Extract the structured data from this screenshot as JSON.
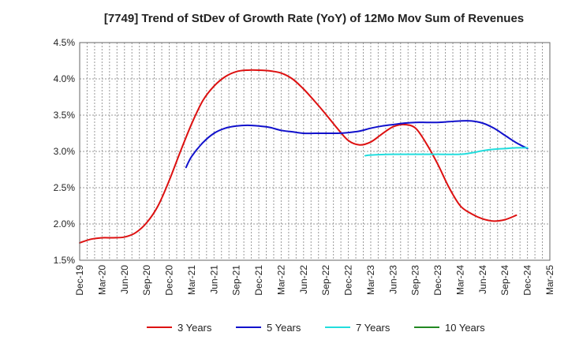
{
  "chart_data": {
    "type": "line",
    "title": "[7749]  Trend of StDev of Growth Rate (YoY) of 12Mo Mov Sum of Revenues",
    "xlabel": "",
    "ylabel": "",
    "ylim": [
      1.5,
      4.5
    ],
    "yticks": [
      "1.5%",
      "2.0%",
      "2.5%",
      "3.0%",
      "3.5%",
      "4.0%",
      "4.5%"
    ],
    "ytick_values": [
      1.5,
      2.0,
      2.5,
      3.0,
      3.5,
      4.0,
      4.5
    ],
    "xticks": [
      "Dec-19",
      "Mar-20",
      "Jun-20",
      "Sep-20",
      "Dec-20",
      "Mar-21",
      "Jun-21",
      "Sep-21",
      "Dec-21",
      "Mar-22",
      "Jun-22",
      "Sep-22",
      "Dec-22",
      "Mar-23",
      "Jun-23",
      "Sep-23",
      "Dec-23",
      "Mar-24",
      "Jun-24",
      "Sep-24",
      "Dec-24",
      "Mar-25"
    ],
    "x_index_note": "x values are quarter indices: 0 = Dec-19, 21 = Mar-25",
    "xlim": [
      0,
      21
    ],
    "grid": true,
    "legend_position": "bottom",
    "series": [
      {
        "name": "3 Years",
        "color": "#dd1111",
        "points": [
          [
            0,
            1.74
          ],
          [
            0.5,
            1.79
          ],
          [
            1,
            1.81
          ],
          [
            1.5,
            1.81
          ],
          [
            2,
            1.82
          ],
          [
            2.5,
            1.88
          ],
          [
            3,
            2.02
          ],
          [
            3.5,
            2.25
          ],
          [
            4,
            2.6
          ],
          [
            4.5,
            3.0
          ],
          [
            5,
            3.38
          ],
          [
            5.5,
            3.7
          ],
          [
            6,
            3.9
          ],
          [
            6.5,
            4.03
          ],
          [
            7,
            4.1
          ],
          [
            7.5,
            4.12
          ],
          [
            8,
            4.12
          ],
          [
            8.5,
            4.11
          ],
          [
            9,
            4.08
          ],
          [
            9.5,
            4.0
          ],
          [
            10,
            3.86
          ],
          [
            10.5,
            3.69
          ],
          [
            11,
            3.51
          ],
          [
            11.5,
            3.32
          ],
          [
            12,
            3.15
          ],
          [
            12.5,
            3.09
          ],
          [
            13,
            3.13
          ],
          [
            13.5,
            3.24
          ],
          [
            14,
            3.34
          ],
          [
            14.5,
            3.37
          ],
          [
            15,
            3.32
          ],
          [
            15.5,
            3.1
          ],
          [
            16,
            2.82
          ],
          [
            16.5,
            2.5
          ],
          [
            17,
            2.25
          ],
          [
            17.5,
            2.14
          ],
          [
            18,
            2.07
          ],
          [
            18.5,
            2.04
          ],
          [
            19,
            2.06
          ],
          [
            19.5,
            2.12
          ]
        ]
      },
      {
        "name": "5 Years",
        "color": "#1111cc",
        "points": [
          [
            4.75,
            2.78
          ],
          [
            5,
            2.93
          ],
          [
            5.5,
            3.12
          ],
          [
            6,
            3.25
          ],
          [
            6.5,
            3.32
          ],
          [
            7,
            3.35
          ],
          [
            7.5,
            3.36
          ],
          [
            8,
            3.35
          ],
          [
            8.5,
            3.33
          ],
          [
            9,
            3.29
          ],
          [
            9.5,
            3.27
          ],
          [
            10,
            3.25
          ],
          [
            10.5,
            3.25
          ],
          [
            11,
            3.25
          ],
          [
            11.5,
            3.25
          ],
          [
            12,
            3.26
          ],
          [
            12.5,
            3.28
          ],
          [
            13,
            3.32
          ],
          [
            13.5,
            3.35
          ],
          [
            14,
            3.37
          ],
          [
            14.5,
            3.39
          ],
          [
            15,
            3.4
          ],
          [
            15.5,
            3.4
          ],
          [
            16,
            3.4
          ],
          [
            16.5,
            3.41
          ],
          [
            17,
            3.42
          ],
          [
            17.5,
            3.42
          ],
          [
            18,
            3.39
          ],
          [
            18.5,
            3.32
          ],
          [
            19,
            3.22
          ],
          [
            19.5,
            3.12
          ],
          [
            20,
            3.04
          ]
        ]
      },
      {
        "name": "7 Years",
        "color": "#22dddd",
        "points": [
          [
            12.75,
            2.94
          ],
          [
            13,
            2.95
          ],
          [
            14,
            2.96
          ],
          [
            15,
            2.96
          ],
          [
            16,
            2.96
          ],
          [
            17,
            2.96
          ],
          [
            17.5,
            2.98
          ],
          [
            18,
            3.01
          ],
          [
            18.5,
            3.03
          ],
          [
            19,
            3.04
          ],
          [
            19.5,
            3.05
          ],
          [
            20,
            3.05
          ]
        ]
      },
      {
        "name": "10 Years",
        "color": "#228822",
        "points": []
      }
    ]
  }
}
